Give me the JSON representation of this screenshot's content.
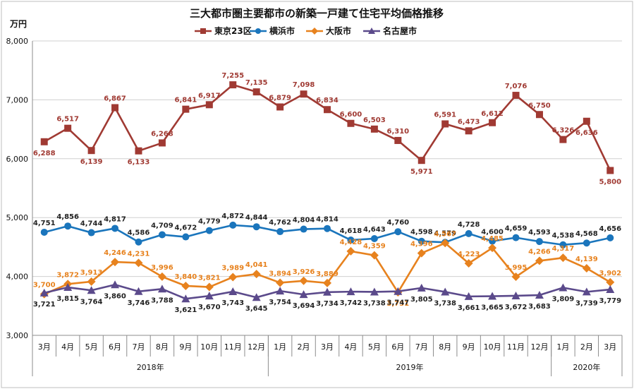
{
  "chart_data": {
    "type": "line",
    "title": "三大都市圏主要都市の新築一戸建て住宅平均価格推移",
    "ylabel": "万円",
    "ylim": [
      3000,
      8000
    ],
    "yticks": [
      "3,000",
      "4,000",
      "5,000",
      "6,000",
      "7,000",
      "8,000"
    ],
    "ytick_values": [
      3000,
      4000,
      5000,
      6000,
      7000,
      8000
    ],
    "categories": [
      "3月",
      "4月",
      "5月",
      "6月",
      "7月",
      "8月",
      "9月",
      "10月",
      "11月",
      "12月",
      "1月",
      "2月",
      "3月",
      "4月",
      "5月",
      "6月",
      "7月",
      "8月",
      "9月",
      "10月",
      "11月",
      "12月",
      "1月",
      "2月",
      "3月"
    ],
    "year_groups": [
      {
        "label": "2018年",
        "start": 0,
        "end": 9
      },
      {
        "label": "2019年",
        "start": 10,
        "end": 21
      },
      {
        "label": "2020年",
        "start": 22,
        "end": 24
      }
    ],
    "series": [
      {
        "name": "東京23区",
        "color": "#A03A33",
        "marker": "square",
        "labels_position": [
          1,
          -1,
          1,
          -1,
          1,
          -1,
          -1,
          -1,
          -1,
          -1,
          -1,
          -1,
          -1,
          -1,
          -1,
          -1,
          1,
          -1,
          -1,
          -1,
          -1,
          -1,
          -1,
          1,
          1
        ],
        "values": [
          6288,
          6517,
          6139,
          6867,
          6133,
          6268,
          6841,
          6917,
          7255,
          7135,
          6879,
          7098,
          6834,
          6600,
          6503,
          6310,
          5971,
          6591,
          6473,
          6612,
          7076,
          6750,
          6326,
          6636,
          5800
        ],
        "labels": [
          "6,288",
          "6,517",
          "6,139",
          "6,867",
          "6,133",
          "6,268",
          "6,841",
          "6,917",
          "7,255",
          "7,135",
          "6,879",
          "7,098",
          "6,834",
          "6,600",
          "6,503",
          "6,310",
          "5,971",
          "6,591",
          "6,473",
          "6,612",
          "7,076",
          "6,750",
          "6,326",
          "6,636",
          "5,800"
        ]
      },
      {
        "name": "横浜市",
        "color": "#1A75BC",
        "marker": "circle",
        "labels_position": [
          -1,
          -1,
          -1,
          -1,
          -1,
          -1,
          -1,
          -1,
          -1,
          -1,
          -1,
          -1,
          -1,
          -1,
          -1,
          -1,
          -1,
          -1,
          -1,
          -1,
          -1,
          -1,
          -1,
          -1,
          -1
        ],
        "values": [
          4751,
          4856,
          4744,
          4817,
          4586,
          4709,
          4672,
          4779,
          4872,
          4844,
          4762,
          4804,
          4814,
          4618,
          4643,
          4760,
          4598,
          4579,
          4728,
          4600,
          4659,
          4593,
          4538,
          4568,
          4656
        ],
        "labels": [
          "4,751",
          "4,856",
          "4,744",
          "4,817",
          "4,586",
          "4,709",
          "4,672",
          "4,779",
          "4,872",
          "4,844",
          "4,762",
          "4,804",
          "4,814",
          "4,618",
          "4,643",
          "4,760",
          "4,598",
          "4,579",
          "4,728",
          "4,600",
          "4,659",
          "4,593",
          "4,538",
          "4,568",
          "4,656"
        ]
      },
      {
        "name": "大阪市",
        "color": "#E7821E",
        "marker": "diamond",
        "labels_position": [
          -1,
          -1,
          -1,
          -1,
          -1,
          -1,
          -1,
          -1,
          -1,
          -1,
          -1,
          -1,
          -1,
          -1,
          -1,
          1,
          -1,
          -1,
          -1,
          -1,
          -1,
          -1,
          -1,
          -1,
          -1
        ],
        "values": [
          3700,
          3872,
          3913,
          4246,
          4231,
          3996,
          3840,
          3821,
          3989,
          4041,
          3894,
          3926,
          3889,
          4428,
          4359,
          3731,
          4396,
          4567,
          4223,
          4485,
          3995,
          4266,
          4317,
          4139,
          3902
        ],
        "labels": [
          "3,700",
          "3,872",
          "3,913",
          "4,246",
          "4,231",
          "3,996",
          "3,840",
          "3,821",
          "3,989",
          "4,041",
          "3,894",
          "3,926",
          "3,889",
          "4,428",
          "4,359",
          "3,731",
          "4,396",
          "4,567",
          "4,223",
          "4,485",
          "3,995",
          "4,266",
          "4,317",
          "4,139",
          "3,902"
        ]
      },
      {
        "name": "名古屋市",
        "color": "#5B4A8B",
        "marker": "triangle",
        "labels_position": [
          1,
          1,
          1,
          1,
          1,
          1,
          1,
          1,
          1,
          1,
          1,
          1,
          1,
          1,
          1,
          1,
          1,
          1,
          1,
          1,
          1,
          1,
          1,
          1,
          1
        ],
        "values": [
          3721,
          3815,
          3764,
          3860,
          3746,
          3788,
          3621,
          3670,
          3743,
          3645,
          3754,
          3694,
          3734,
          3742,
          3738,
          3747,
          3805,
          3738,
          3661,
          3665,
          3672,
          3683,
          3809,
          3739,
          3779
        ],
        "labels": [
          "3,721",
          "3,815",
          "3,764",
          "3,860",
          "3,746",
          "3,788",
          "3,621",
          "3,670",
          "3,743",
          "3,645",
          "3,754",
          "3,694",
          "3,734",
          "3,742",
          "3,738",
          "3,747",
          "3,805",
          "3,738",
          "3,661",
          "3,665",
          "3,672",
          "3,683",
          "3,809",
          "3,739",
          "3,779"
        ]
      }
    ],
    "legend": [
      "東京23区",
      "横浜市",
      "大阪市",
      "名古屋市"
    ],
    "legend_placement": "top-center",
    "grid": true
  }
}
